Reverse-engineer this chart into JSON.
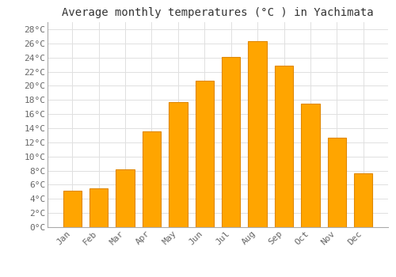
{
  "title": "Average monthly temperatures (°C ) in Yachimata",
  "months": [
    "Jan",
    "Feb",
    "Mar",
    "Apr",
    "May",
    "Jun",
    "Jul",
    "Aug",
    "Sep",
    "Oct",
    "Nov",
    "Dec"
  ],
  "values": [
    5.1,
    5.5,
    8.2,
    13.5,
    17.7,
    20.7,
    24.1,
    26.3,
    22.8,
    17.5,
    12.6,
    7.6
  ],
  "bar_color": "#FFA500",
  "bar_edge_color": "#E08800",
  "ylim": [
    0,
    29
  ],
  "yticks": [
    0,
    2,
    4,
    6,
    8,
    10,
    12,
    14,
    16,
    18,
    20,
    22,
    24,
    26,
    28
  ],
  "ytick_labels": [
    "0°C",
    "2°C",
    "4°C",
    "6°C",
    "8°C",
    "10°C",
    "12°C",
    "14°C",
    "16°C",
    "18°C",
    "20°C",
    "22°C",
    "24°C",
    "26°C",
    "28°C"
  ],
  "background_color": "#ffffff",
  "plot_bg_color": "#ffffff",
  "grid_color": "#e0e0e0",
  "title_fontsize": 10,
  "tick_fontsize": 8,
  "font_family": "monospace",
  "tick_color": "#666666",
  "bar_width": 0.7
}
